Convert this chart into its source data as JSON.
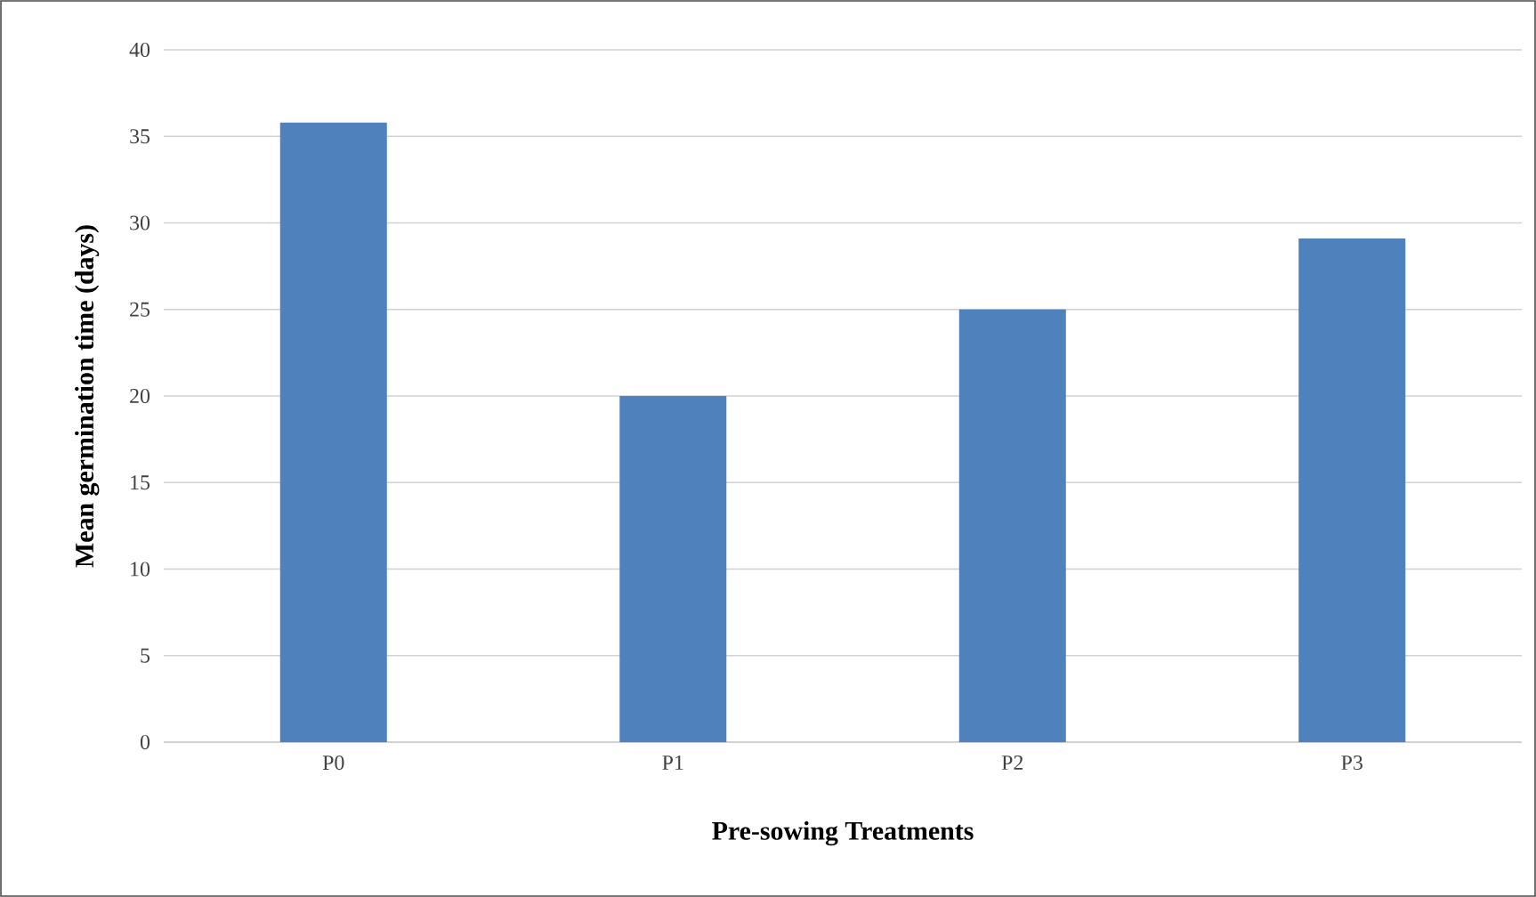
{
  "chart_data": {
    "type": "bar",
    "xlabel": "Pre-sowing Treatments",
    "ylabel": "Mean germination time (days)",
    "categories": [
      "P0",
      "P1",
      "P2",
      "P3"
    ],
    "values": [
      35.8,
      20,
      25,
      29.1
    ],
    "color": "#4f81bd",
    "ylim": [
      0,
      40
    ],
    "yticks": [
      0,
      5,
      10,
      15,
      20,
      25,
      30,
      35,
      40
    ],
    "grid": "y"
  }
}
